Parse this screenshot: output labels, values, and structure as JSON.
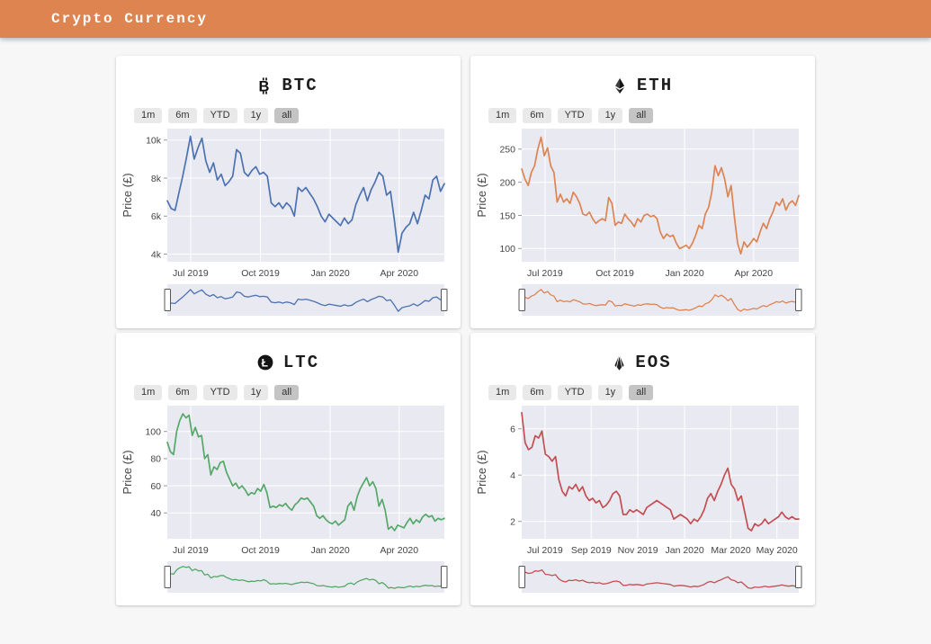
{
  "header": {
    "title": "Crypto Currency",
    "background": "#DE8451"
  },
  "theme": {
    "page_bg": "#F7F7F7",
    "card_bg": "#FFFFFF",
    "plot_bg": "#E9E9F2",
    "grid_color": "#FFFFFF",
    "tick_color": "#444444",
    "accent_orange": "#DE8451"
  },
  "range_selector": {
    "buttons": [
      "1m",
      "6m",
      "YTD",
      "1y",
      "all"
    ],
    "selected": "all"
  },
  "ylabel": "Price (£)",
  "chart_data": [
    {
      "type": "line",
      "title": "BTC",
      "icon": "bitcoin-icon",
      "color": "#4C72B0",
      "ylabel": "Price (£)",
      "y_unit": "thousand £",
      "ylim": [
        3.6,
        10.6
      ],
      "x_span": [
        "Jun 2019",
        "Jun 2020"
      ],
      "yticks": [
        {
          "v": 4,
          "label": "4k"
        },
        {
          "v": 6,
          "label": "6k"
        },
        {
          "v": 8,
          "label": "8k"
        },
        {
          "v": 10,
          "label": "10k"
        }
      ],
      "xticks": [
        {
          "pos": 0.084,
          "label": "Jul 2019"
        },
        {
          "pos": 0.336,
          "label": "Oct 2019"
        },
        {
          "pos": 0.588,
          "label": "Jan 2020"
        },
        {
          "pos": 0.837,
          "label": "Apr 2020"
        }
      ],
      "values": [
        6.8,
        6.4,
        6.3,
        7.2,
        8.1,
        9.1,
        10.2,
        9.0,
        9.6,
        10.1,
        8.9,
        8.3,
        8.8,
        7.9,
        8.2,
        7.6,
        7.8,
        8.1,
        9.5,
        9.3,
        8.3,
        8.1,
        8.4,
        8.6,
        8.2,
        8.3,
        8.1,
        6.7,
        6.5,
        6.7,
        6.4,
        6.7,
        6.5,
        6.0,
        7.5,
        7.3,
        7.5,
        7.2,
        6.9,
        6.5,
        6.0,
        5.7,
        6.1,
        5.9,
        5.7,
        5.5,
        5.9,
        5.6,
        5.8,
        6.6,
        7.1,
        7.5,
        6.8,
        7.4,
        7.8,
        8.3,
        8.1,
        7.1,
        7.3,
        5.8,
        4.1,
        5.1,
        5.4,
        5.6,
        6.2,
        5.6,
        6.3,
        7.1,
        6.9,
        7.9,
        8.1,
        7.3,
        7.7
      ]
    },
    {
      "type": "line",
      "title": "ETH",
      "icon": "ethereum-icon",
      "color": "#DD8452",
      "ylabel": "Price (£)",
      "y_unit": "£",
      "ylim": [
        80,
        281
      ],
      "x_span": [
        "Jun 2019",
        "Jun 2020"
      ],
      "yticks": [
        {
          "v": 100,
          "label": "100"
        },
        {
          "v": 150,
          "label": "150"
        },
        {
          "v": 200,
          "label": "200"
        },
        {
          "v": 250,
          "label": "250"
        }
      ],
      "xticks": [
        {
          "pos": 0.084,
          "label": "Jul 2019"
        },
        {
          "pos": 0.336,
          "label": "Oct 2019"
        },
        {
          "pos": 0.588,
          "label": "Jan 2020"
        },
        {
          "pos": 0.837,
          "label": "Apr 2020"
        }
      ],
      "values": [
        220,
        205,
        195,
        215,
        225,
        250,
        268,
        240,
        252,
        225,
        215,
        170,
        182,
        170,
        175,
        168,
        185,
        178,
        168,
        152,
        150,
        155,
        145,
        138,
        142,
        145,
        142,
        177,
        168,
        135,
        140,
        138,
        152,
        145,
        140,
        133,
        145,
        140,
        150,
        152,
        148,
        150,
        145,
        125,
        115,
        122,
        118,
        120,
        108,
        100,
        102,
        105,
        100,
        108,
        120,
        135,
        130,
        152,
        162,
        185,
        225,
        210,
        222,
        205,
        178,
        195,
        148,
        108,
        92,
        110,
        102,
        108,
        115,
        110,
        125,
        138,
        130,
        145,
        155,
        170,
        165,
        175,
        158,
        168,
        172,
        165,
        180
      ]
    },
    {
      "type": "line",
      "title": "LTC",
      "icon": "litecoin-icon",
      "color": "#55A868",
      "ylabel": "Price (£)",
      "y_unit": "£",
      "ylim": [
        21,
        119
      ],
      "x_span": [
        "Jun 2019",
        "Jun 2020"
      ],
      "yticks": [
        {
          "v": 40,
          "label": "40"
        },
        {
          "v": 60,
          "label": "60"
        },
        {
          "v": 80,
          "label": "80"
        },
        {
          "v": 100,
          "label": "100"
        }
      ],
      "xticks": [
        {
          "pos": 0.084,
          "label": "Jul 2019"
        },
        {
          "pos": 0.336,
          "label": "Oct 2019"
        },
        {
          "pos": 0.588,
          "label": "Jan 2020"
        },
        {
          "pos": 0.837,
          "label": "Apr 2020"
        }
      ],
      "values": [
        92,
        85,
        83,
        100,
        108,
        113,
        110,
        112,
        97,
        103,
        96,
        97,
        80,
        83,
        68,
        74,
        72,
        77,
        78,
        70,
        65,
        60,
        62,
        58,
        60,
        57,
        53,
        55,
        54,
        58,
        56,
        61,
        55,
        44,
        45,
        44,
        46,
        45,
        47,
        44,
        42,
        46,
        48,
        51,
        50,
        51,
        48,
        45,
        38,
        36,
        38,
        35,
        33,
        32,
        34,
        31,
        33,
        35,
        45,
        48,
        42,
        52,
        58,
        62,
        66,
        60,
        63,
        58,
        45,
        50,
        42,
        28,
        30,
        27,
        31,
        30,
        29,
        33,
        36,
        32,
        35,
        33,
        37,
        39,
        37,
        38,
        34,
        36,
        35,
        36
      ]
    },
    {
      "type": "line",
      "title": "EOS",
      "icon": "eos-icon",
      "color": "#C44E52",
      "ylabel": "Price (£)",
      "y_unit": "£",
      "ylim": [
        1.25,
        7.0
      ],
      "x_span": [
        "Jun 2019",
        "Jun 2020"
      ],
      "yticks": [
        {
          "v": 2,
          "label": "2"
        },
        {
          "v": 4,
          "label": "4"
        },
        {
          "v": 6,
          "label": "6"
        }
      ],
      "xticks": [
        {
          "pos": 0.084,
          "label": "Jul 2019"
        },
        {
          "pos": 0.251,
          "label": "Sep 2019"
        },
        {
          "pos": 0.419,
          "label": "Nov 2019"
        },
        {
          "pos": 0.588,
          "label": "Jan 2020"
        },
        {
          "pos": 0.755,
          "label": "Mar 2020"
        },
        {
          "pos": 0.921,
          "label": "May 2020"
        }
      ],
      "values": [
        6.7,
        5.4,
        5.1,
        5.2,
        5.7,
        5.6,
        5.9,
        4.9,
        4.8,
        4.6,
        4.8,
        3.8,
        3.3,
        3.1,
        3.5,
        3.4,
        3.6,
        3.3,
        3.5,
        3.1,
        2.9,
        3.0,
        2.8,
        2.9,
        2.6,
        2.7,
        2.9,
        3.2,
        3.3,
        3.1,
        2.3,
        2.3,
        2.5,
        2.4,
        2.5,
        2.4,
        2.3,
        2.6,
        2.7,
        2.8,
        2.9,
        2.8,
        2.7,
        2.6,
        2.5,
        2.1,
        2.2,
        2.3,
        2.2,
        2.1,
        1.9,
        2.1,
        2.0,
        2.2,
        2.5,
        3.0,
        3.2,
        2.9,
        3.3,
        3.6,
        4.0,
        4.3,
        3.6,
        3.4,
        2.9,
        3.1,
        2.4,
        1.7,
        1.6,
        1.9,
        1.8,
        1.9,
        2.1,
        1.9,
        2.0,
        2.1,
        2.2,
        2.4,
        2.2,
        2.1,
        2.2,
        2.1,
        2.1
      ]
    }
  ]
}
